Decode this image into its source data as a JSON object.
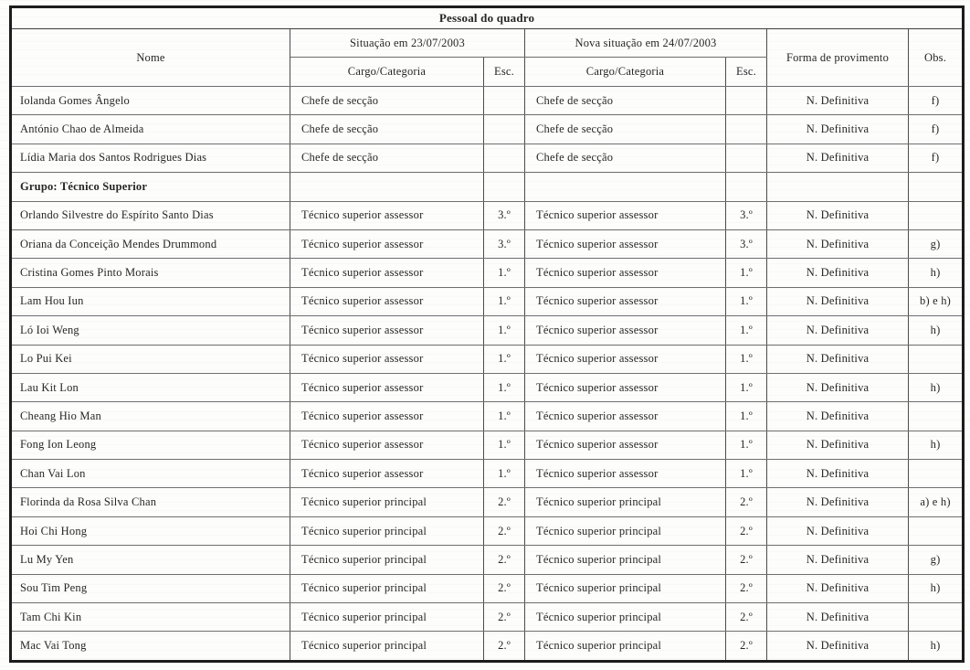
{
  "table": {
    "title": "Pessoal do quadro",
    "header": {
      "nome": "Nome",
      "situacao_old": "Situação em 23/07/2003",
      "situacao_new": "Nova situação em 24/07/2003",
      "cargo": "Cargo/Categoria",
      "esc": "Esc.",
      "forma": "Forma de provimento",
      "obs": "Obs."
    },
    "rows": [
      {
        "nome": "Iolanda Gomes Ângelo",
        "cargo_old": "Chefe de secção",
        "esc_old": "",
        "cargo_new": "Chefe de secção",
        "esc_new": "",
        "forma": "N. Definitiva",
        "obs": "f)",
        "group": false
      },
      {
        "nome": "António Chao de Almeida",
        "cargo_old": "Chefe de secção",
        "esc_old": "",
        "cargo_new": "Chefe de secção",
        "esc_new": "",
        "forma": "N. Definitiva",
        "obs": "f)",
        "group": false
      },
      {
        "nome": "Lídia Maria dos Santos Rodrigues Dias",
        "cargo_old": "Chefe de secção",
        "esc_old": "",
        "cargo_new": "Chefe de secção",
        "esc_new": "",
        "forma": "N. Definitiva",
        "obs": "f)",
        "group": false
      },
      {
        "nome": "Grupo: Técnico Superior",
        "cargo_old": "",
        "esc_old": "",
        "cargo_new": "",
        "esc_new": "",
        "forma": "",
        "obs": "",
        "group": true
      },
      {
        "nome": "Orlando Silvestre do Espírito Santo Dias",
        "cargo_old": "Técnico superior assessor",
        "esc_old": "3.º",
        "cargo_new": "Técnico superior assessor",
        "esc_new": "3.º",
        "forma": "N. Definitiva",
        "obs": "",
        "group": false
      },
      {
        "nome": "Oriana da Conceição Mendes Drummond",
        "cargo_old": "Técnico superior assessor",
        "esc_old": "3.º",
        "cargo_new": "Técnico superior assessor",
        "esc_new": "3.º",
        "forma": "N. Definitiva",
        "obs": "g)",
        "group": false
      },
      {
        "nome": "Cristina Gomes Pinto Morais",
        "cargo_old": "Técnico superior assessor",
        "esc_old": "1.º",
        "cargo_new": "Técnico superior assessor",
        "esc_new": "1.º",
        "forma": "N. Definitiva",
        "obs": "h)",
        "group": false
      },
      {
        "nome": "Lam Hou Iun",
        "cargo_old": "Técnico superior assessor",
        "esc_old": "1.º",
        "cargo_new": "Técnico superior assessor",
        "esc_new": "1.º",
        "forma": "N. Definitiva",
        "obs": "b) e h)",
        "group": false
      },
      {
        "nome": "Ló Ioi Weng",
        "cargo_old": "Técnico superior assessor",
        "esc_old": "1.º",
        "cargo_new": "Técnico superior assessor",
        "esc_new": "1.º",
        "forma": "N. Definitiva",
        "obs": "h)",
        "group": false
      },
      {
        "nome": "Lo Pui Kei",
        "cargo_old": "Técnico superior assessor",
        "esc_old": "1.º",
        "cargo_new": "Técnico superior assessor",
        "esc_new": "1.º",
        "forma": "N. Definitiva",
        "obs": "",
        "group": false
      },
      {
        "nome": "Lau Kit Lon",
        "cargo_old": "Técnico superior assessor",
        "esc_old": "1.º",
        "cargo_new": "Técnico superior assessor",
        "esc_new": "1.º",
        "forma": "N. Definitiva",
        "obs": "h)",
        "group": false
      },
      {
        "nome": "Cheang Hio Man",
        "cargo_old": "Técnico superior assessor",
        "esc_old": "1.º",
        "cargo_new": "Técnico superior assessor",
        "esc_new": "1.º",
        "forma": "N. Definitiva",
        "obs": "",
        "group": false
      },
      {
        "nome": "Fong Ion Leong",
        "cargo_old": "Técnico superior assessor",
        "esc_old": "1.º",
        "cargo_new": "Técnico superior assessor",
        "esc_new": "1.º",
        "forma": "N. Definitiva",
        "obs": "h)",
        "group": false
      },
      {
        "nome": "Chan Vai Lon",
        "cargo_old": "Técnico superior assessor",
        "esc_old": "1.º",
        "cargo_new": "Técnico superior assessor",
        "esc_new": "1.º",
        "forma": "N. Definitiva",
        "obs": "",
        "group": false
      },
      {
        "nome": "Florinda da Rosa Silva Chan",
        "cargo_old": "Técnico superior principal",
        "esc_old": "2.º",
        "cargo_new": "Técnico superior principal",
        "esc_new": "2.º",
        "forma": "N. Definitiva",
        "obs": "a) e h)",
        "group": false
      },
      {
        "nome": "Hoi Chi Hong",
        "cargo_old": "Técnico superior principal",
        "esc_old": "2.º",
        "cargo_new": "Técnico superior principal",
        "esc_new": "2.º",
        "forma": "N. Definitiva",
        "obs": "",
        "group": false
      },
      {
        "nome": "Lu My Yen",
        "cargo_old": "Técnico superior principal",
        "esc_old": "2.º",
        "cargo_new": "Técnico superior principal",
        "esc_new": "2.º",
        "forma": "N. Definitiva",
        "obs": "g)",
        "group": false
      },
      {
        "nome": "Sou Tim Peng",
        "cargo_old": "Técnico superior principal",
        "esc_old": "2.º",
        "cargo_new": "Técnico superior principal",
        "esc_new": "2.º",
        "forma": "N. Definitiva",
        "obs": "h)",
        "group": false
      },
      {
        "nome": "Tam Chi Kin",
        "cargo_old": "Técnico superior principal",
        "esc_old": "2.º",
        "cargo_new": "Técnico superior principal",
        "esc_new": "2.º",
        "forma": "N. Definitiva",
        "obs": "",
        "group": false
      },
      {
        "nome": "Mac Vai Tong",
        "cargo_old": "Técnico superior principal",
        "esc_old": "2.º",
        "cargo_new": "Técnico superior principal",
        "esc_new": "2.º",
        "forma": "N. Definitiva",
        "obs": "h)",
        "group": false
      }
    ],
    "colors": {
      "ink": "#262626",
      "border_outer": "#1c1c1c",
      "border_inner": "#4c4c4c",
      "paper": "#fdfdfc"
    }
  }
}
